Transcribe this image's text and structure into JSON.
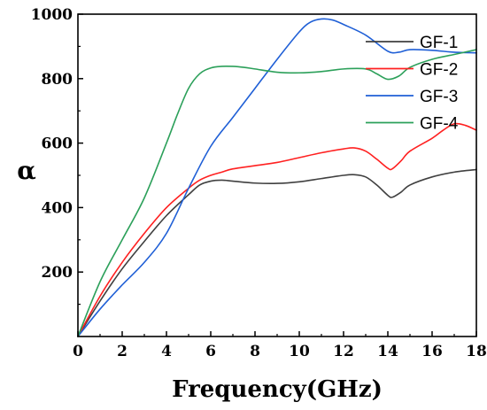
{
  "chart_data": {
    "type": "line",
    "title": "",
    "xlabel": "Frequency(GHz)",
    "ylabel": "α",
    "xlim": [
      0,
      18
    ],
    "ylim": [
      0,
      1000
    ],
    "xticks": [
      "0",
      "2",
      "4",
      "6",
      "8",
      "10",
      "12",
      "14",
      "16",
      "18"
    ],
    "yticks": [
      "200",
      "400",
      "600",
      "800",
      "1000"
    ],
    "grid": false,
    "legend_position": "top-right",
    "series": [
      {
        "name": "GF-1",
        "color": "#404040",
        "x": [
          0,
          1,
          2,
          3,
          4,
          5,
          5.5,
          6,
          6.5,
          7,
          8,
          9,
          10,
          11,
          12,
          12.5,
          13,
          13.5,
          14,
          14.2,
          14.6,
          15,
          16,
          17,
          18
        ],
        "y": [
          0,
          110,
          210,
          295,
          375,
          440,
          470,
          482,
          485,
          482,
          476,
          475,
          480,
          490,
          500,
          502,
          495,
          470,
          438,
          432,
          448,
          470,
          495,
          510,
          518
        ]
      },
      {
        "name": "GF-2",
        "color": "#ff2020",
        "x": [
          0,
          1,
          2,
          3,
          4,
          5,
          5.5,
          6,
          6.5,
          7,
          8,
          9,
          10,
          11,
          12,
          12.5,
          13,
          13.5,
          14,
          14.2,
          14.6,
          15,
          16,
          16.5,
          17,
          17.5,
          18
        ],
        "y": [
          0,
          125,
          230,
          320,
          400,
          460,
          485,
          500,
          510,
          520,
          530,
          540,
          555,
          570,
          582,
          585,
          575,
          550,
          522,
          520,
          545,
          575,
          615,
          640,
          660,
          655,
          640
        ]
      },
      {
        "name": "GF-3",
        "color": "#1f5fd6",
        "x": [
          0,
          1,
          2,
          3,
          4,
          5,
          6,
          7,
          8,
          9,
          10,
          10.5,
          11,
          11.5,
          12,
          13,
          14,
          14.5,
          15,
          16,
          17,
          18
        ],
        "y": [
          0,
          85,
          160,
          230,
          320,
          460,
          590,
          680,
          770,
          860,
          945,
          975,
          985,
          982,
          968,
          935,
          885,
          882,
          890,
          888,
          882,
          880
        ]
      },
      {
        "name": "GF-4",
        "color": "#2ca05a",
        "x": [
          0,
          1,
          2,
          3,
          4,
          4.5,
          5,
          5.5,
          6,
          6.5,
          7,
          7.5,
          8,
          9,
          10,
          11,
          12,
          13,
          13.5,
          14,
          14.5,
          15,
          16,
          17,
          18
        ],
        "y": [
          0,
          170,
          300,
          430,
          600,
          690,
          770,
          815,
          833,
          838,
          838,
          835,
          830,
          820,
          818,
          822,
          830,
          830,
          815,
          798,
          808,
          835,
          860,
          875,
          890
        ]
      }
    ]
  }
}
